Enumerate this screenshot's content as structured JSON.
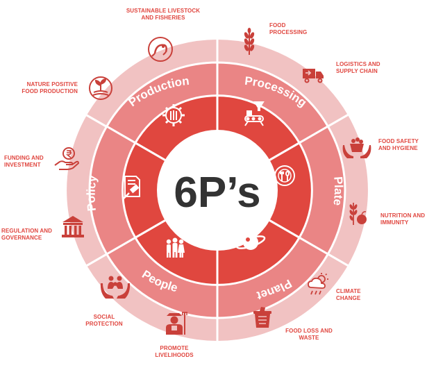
{
  "center": {
    "title": "6P’s"
  },
  "colors": {
    "inner": "#e0473f",
    "middle": "#ea8585",
    "outer": "#f1c2c2",
    "text_red": "#e0463f",
    "icon_outer": "#c9403a",
    "white": "#ffffff",
    "dark": "#333333"
  },
  "sectors": [
    {
      "id": "production",
      "label": "Production",
      "icon": "gear-wheat-icon",
      "items": [
        {
          "label": "SUSTAINABLE LIVESTOCK\nAND FISHERIES",
          "icon": "shrimp-icon"
        },
        {
          "label": "NATURE POSITIVE\nFOOD PRODUCTION",
          "icon": "plant-field-icon"
        }
      ]
    },
    {
      "id": "processing",
      "label": "Processing",
      "icon": "conveyor-funnel-icon",
      "items": [
        {
          "label": "FOOD\nPROCESSING",
          "icon": "wheat-icon"
        },
        {
          "label": "LOGISTICS AND\nSUPPLY CHAIN",
          "icon": "delivery-truck-icon"
        }
      ]
    },
    {
      "id": "plate",
      "label": "Plate",
      "icon": "plate-fork-spoon-icon",
      "items": [
        {
          "label": "FOOD SAFETY\nAND HYGIENE",
          "icon": "hands-basket-icon"
        },
        {
          "label": "NUTRITION AND\nIMMUNITY",
          "icon": "wheat-apple-icon"
        }
      ]
    },
    {
      "id": "planet",
      "label": "Planet",
      "icon": "planet-icon",
      "items": [
        {
          "label": "CLIMATE\nCHANGE",
          "icon": "cloud-sun-rain-icon"
        },
        {
          "label": "FOOD LOSS AND\nWASTE",
          "icon": "waste-bin-icon"
        }
      ]
    },
    {
      "id": "people",
      "label": "People",
      "icon": "people-group-icon",
      "items": [
        {
          "label": "PROMOTE\nLIVELIHOODS",
          "icon": "farmer-icon"
        },
        {
          "label": "SOCIAL\nPROTECTION",
          "icon": "family-hands-icon"
        }
      ]
    },
    {
      "id": "policy",
      "label": "Policy",
      "icon": "document-gavel-icon",
      "items": [
        {
          "label": "REGULATION AND\nGOVERNANCE",
          "icon": "government-building-icon"
        },
        {
          "label": "FUNDING AND\nINVESTMENT",
          "icon": "rupee-hand-icon"
        }
      ]
    }
  ]
}
